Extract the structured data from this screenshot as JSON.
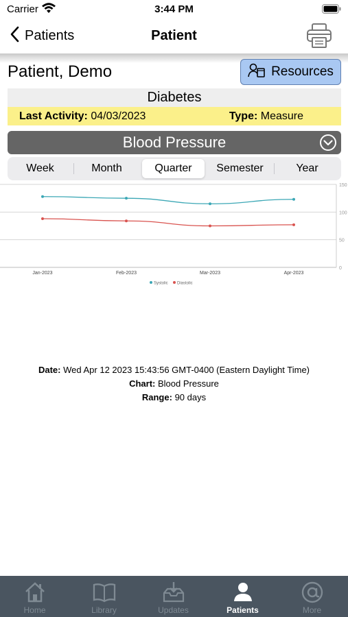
{
  "status": {
    "carrier": "Carrier",
    "time": "3:44 PM"
  },
  "nav": {
    "back_label": "Patients",
    "title": "Patient",
    "print_icon": "printer-icon"
  },
  "patient": {
    "name": "Patient, Demo"
  },
  "resources": {
    "label": "Resources",
    "icon": "person-book-icon"
  },
  "condition": "Diabetes",
  "activity": {
    "label": "Last Activity:",
    "value": "04/03/2023",
    "type_label": "Type:",
    "type_value": "Measure"
  },
  "chart_select": {
    "label": "Blood Pressure",
    "icon": "chevron-down-circle-icon"
  },
  "segments": [
    "Week",
    "Month",
    "Quarter",
    "Semester",
    "Year"
  ],
  "selected_segment": "Quarter",
  "chart_data": {
    "type": "line",
    "categories": [
      "Jan-2023",
      "Feb-2023",
      "Mar-2023",
      "Apr-2023"
    ],
    "series": [
      {
        "name": "Systolic",
        "values": [
          128,
          125,
          115,
          123
        ],
        "color": "#3ba7b5"
      },
      {
        "name": "Diastolic",
        "values": [
          88,
          84,
          75,
          77
        ],
        "color": "#d9534f"
      }
    ],
    "ylim": [
      0,
      150
    ],
    "yticks": [
      0,
      50,
      100,
      150
    ],
    "grid": true,
    "legend": "bottom-center",
    "y_axis_side": "right"
  },
  "info": {
    "date_label": "Date:",
    "date_value": "Wed Apr 12 2023 15:43:56 GMT-0400 (Eastern Daylight Time)",
    "chart_label": "Chart:",
    "chart_value": "Blood Pressure",
    "range_label": "Range:",
    "range_value": "90 days"
  },
  "tabs": [
    {
      "label": "Home",
      "icon": "home-icon",
      "active": false
    },
    {
      "label": "Library",
      "icon": "book-icon",
      "active": false
    },
    {
      "label": "Updates",
      "icon": "download-tray-icon",
      "active": false
    },
    {
      "label": "Patients",
      "icon": "person-icon",
      "active": true
    },
    {
      "label": "More",
      "icon": "at-sign-icon",
      "active": false
    }
  ]
}
